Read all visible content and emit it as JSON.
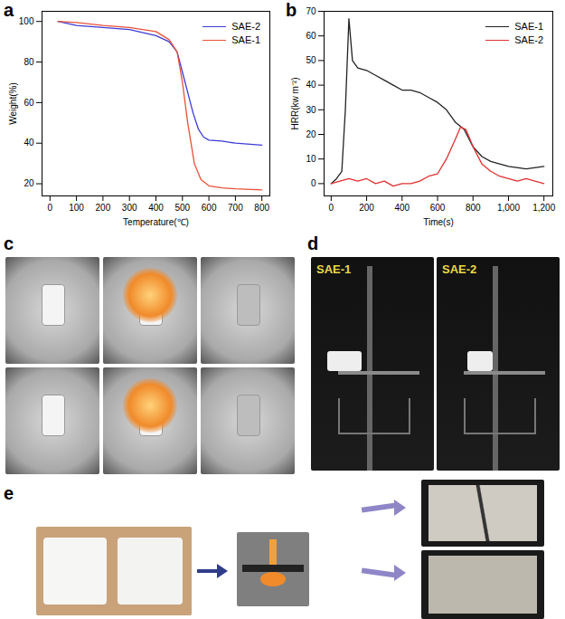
{
  "chart_data": [
    {
      "type": "line",
      "title": "a",
      "x_label": "Temperature(℃)",
      "y_label": "Weight(%)",
      "xlim": [
        -30,
        830
      ],
      "xticks": [
        0,
        100,
        200,
        300,
        400,
        500,
        600,
        700,
        800
      ],
      "ylim": [
        14,
        105
      ],
      "yticks": [
        20,
        40,
        60,
        80,
        100
      ],
      "legend": "top-right",
      "series": [
        {
          "name": "SAE-2",
          "color": "#3b3bd6",
          "x": [
            30,
            100,
            200,
            300,
            400,
            450,
            480,
            500,
            520,
            540,
            560,
            580,
            600,
            650,
            700,
            800
          ],
          "values": [
            100,
            98,
            97,
            96,
            93,
            90,
            85,
            75,
            65,
            55,
            47,
            43,
            41.5,
            41,
            40,
            39
          ]
        },
        {
          "name": "SAE-1",
          "color": "#e8503a",
          "x": [
            30,
            100,
            200,
            300,
            400,
            450,
            480,
            500,
            520,
            545,
            570,
            600,
            650,
            700,
            800
          ],
          "values": [
            100,
            99.5,
            98,
            97,
            95,
            91,
            85,
            70,
            50,
            30,
            22,
            19,
            18,
            17.5,
            17
          ]
        }
      ]
    },
    {
      "type": "line",
      "title": "b",
      "x_label": "Time(s)",
      "y_label": "HRR(kw m⁻²)",
      "xlim": [
        -40,
        1250
      ],
      "xticks": [
        0,
        200,
        400,
        600,
        800,
        1000,
        1200
      ],
      "ylim": [
        -5,
        70
      ],
      "yticks": [
        0,
        10,
        20,
        30,
        40,
        50,
        60,
        70
      ],
      "legend": "top-right",
      "series": [
        {
          "name": "SAE-1",
          "color": "#222222",
          "x": [
            0,
            30,
            60,
            80,
            100,
            120,
            150,
            200,
            250,
            300,
            350,
            400,
            450,
            500,
            550,
            600,
            650,
            700,
            750,
            800,
            850,
            900,
            950,
            1000,
            1100,
            1200
          ],
          "values": [
            0,
            2,
            5,
            30,
            67,
            50,
            47,
            46,
            44,
            42,
            40,
            38,
            38,
            37,
            35,
            33,
            30,
            25,
            22,
            15,
            11,
            9,
            8,
            7,
            6,
            7
          ]
        },
        {
          "name": "SAE-2",
          "color": "#e03030",
          "x": [
            0,
            50,
            100,
            150,
            200,
            250,
            300,
            350,
            400,
            450,
            500,
            550,
            600,
            650,
            700,
            730,
            760,
            800,
            850,
            900,
            950,
            1000,
            1050,
            1100,
            1200
          ],
          "values": [
            0,
            1,
            2,
            1,
            2,
            0,
            1,
            -1,
            0,
            0,
            1,
            3,
            4,
            10,
            18,
            23,
            22,
            15,
            8,
            5,
            3,
            2,
            1,
            2,
            0
          ]
        }
      ]
    }
  ],
  "photo_panels": [
    {
      "label": "c"
    },
    {
      "label": "d",
      "texts": [
        "SAE-1",
        "SAE-2"
      ]
    },
    {
      "label": "e"
    }
  ]
}
